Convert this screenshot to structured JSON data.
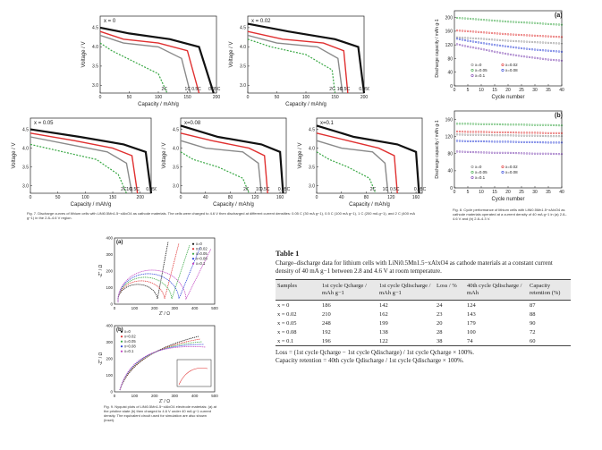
{
  "fig7": {
    "caption": "Fig. 7. Discharge curves of lithium cells with LiNi0.5Mn1.5−xAlxO4 as cathode materials. The cells were charged to 4.6 V then discharged at different current densities: 0.05 C (30 mA g−1), 0.5 C (100 mA g−1), 1 C (200 mA g−1), and 2 C (400 mA g−1) in the 2.8–4.6 V region.",
    "panels": [
      {
        "label": "x = 0",
        "ylabel": "Voltage / V",
        "xlabel": "Capacity / mAh/g",
        "yticks": [
          "3.0",
          "3.5",
          "4.0",
          "4.5"
        ],
        "xticks": [
          "0",
          "50",
          "100",
          "150",
          "200"
        ],
        "rates": [
          "2C",
          "1C",
          "0.5C",
          "0.05C"
        ]
      },
      {
        "label": "x = 0.02",
        "ylabel": "Voltage / V",
        "xlabel": "Capacity / mAh/g",
        "yticks": [
          "3.0",
          "3.5",
          "4.0",
          "4.5"
        ],
        "xticks": [
          "0",
          "50",
          "100",
          "150",
          "200"
        ],
        "rates": [
          "2C",
          "1C",
          "0.5C",
          "0.05C"
        ]
      },
      {
        "label": "x = 0.05",
        "ylabel": "Voltage / V",
        "xlabel": "Capacity / mAh/g",
        "yticks": [
          "3.0",
          "3.5",
          "4.0",
          "4.5"
        ],
        "xticks": [
          "0",
          "50",
          "100",
          "150",
          "200"
        ],
        "rates": [
          "2C",
          "1C",
          "0.5C",
          "0.05C"
        ]
      },
      {
        "label": "x=0.08",
        "ylabel": "Voltage / V",
        "xlabel": "Capacity / mAh/g",
        "yticks": [
          "3.0",
          "3.5",
          "4.0",
          "4.5"
        ],
        "xticks": [
          "0",
          "40",
          "80",
          "120",
          "160"
        ],
        "rates": [
          "2C",
          "1C",
          "0.5C",
          "0.05C"
        ]
      },
      {
        "label": "x=0.1",
        "ylabel": "Voltage / V",
        "xlabel": "Capacity / mAh/g",
        "yticks": [
          "3.0",
          "3.5",
          "4.0",
          "4.5"
        ],
        "xticks": [
          "0",
          "40",
          "80",
          "120",
          "160"
        ],
        "rates": [
          "2C",
          "1C",
          "0.5C",
          "0.05C"
        ]
      }
    ]
  },
  "fig8": {
    "caption": "Fig. 8. Cycle performance of lithium cells with LiNi0.5Mn1.5−xAlxO4 as cathode materials operated at a current density of 40 mA g−1 in (a) 2.8–4.6 V and (b) 2.8–4.3 V.",
    "panels": [
      {
        "label": "(a)",
        "ylabel": "Discharge capacity / mAh g-1",
        "xlabel": "Cycle number",
        "yticks": [
          "0",
          "40",
          "80",
          "120",
          "160",
          "200"
        ],
        "xticks": [
          "0",
          "5",
          "10",
          "15",
          "20",
          "25",
          "30",
          "35",
          "40"
        ],
        "legend": [
          "x=0",
          "x=0.02",
          "x=0.05",
          "x=0.08",
          "x=0.1"
        ]
      },
      {
        "label": "(b)",
        "ylabel": "Discharge capacity / mAh g-1",
        "xlabel": "Cycle number",
        "yticks": [
          "0",
          "40",
          "80",
          "120",
          "160"
        ],
        "xticks": [
          "0",
          "5",
          "10",
          "15",
          "20",
          "25",
          "30",
          "35",
          "40"
        ],
        "legend": [
          "x=0",
          "x=0.02",
          "x=0.05",
          "x=0.08",
          "x=0.1"
        ]
      }
    ]
  },
  "fig9": {
    "caption": "Fig. 9. Nyquist plots of LiNi0.5Mn1.5−xAlxO4 electrode materials: (a) at the pristine state (b) then charged to 4.6 V under 40 mA g−1 current density. The equivalent circuit used for simulation are also shown (inset).",
    "panels": [
      {
        "label": "(a)",
        "ylabel": "-Z'' / Ω",
        "xlabel": "Z' / Ω",
        "yticks": [
          "0",
          "100",
          "200",
          "300",
          "400"
        ],
        "xticks": [
          "0",
          "100",
          "200",
          "300",
          "400",
          "500"
        ],
        "legend": [
          "x=0",
          "x=0.02",
          "x=0.05",
          "x=0.08",
          "x=0.1"
        ]
      },
      {
        "label": "(b)",
        "ylabel": "-Z'' / Ω",
        "xlabel": "Z' / Ω",
        "yticks": [
          "0",
          "100",
          "200",
          "300",
          "400"
        ],
        "xticks": [
          "0",
          "100",
          "200",
          "300",
          "400",
          "500"
        ],
        "legend": [
          "x=0",
          "x=0.02",
          "x=0.05",
          "x=0.08",
          "x=0.1"
        ]
      }
    ]
  },
  "table1": {
    "title": "Table 1",
    "caption": "Charge–discharge data for lithium cells with LiNi0.5Mn1.5−xAlxO4 as cathode materials at a constant current density of 40 mA g−1 between 2.8 and 4.6 V at room temperature.",
    "headers": [
      "Samples",
      "1st cycle Qcharge / mAh g−1",
      "1st cycle Qdischarge / mAh g−1",
      "Loss / %",
      "40th cycle Qdischarge / mAh",
      "Capacity retention (%)"
    ],
    "rows": [
      [
        "x = 0",
        "186",
        "142",
        "24",
        "124",
        "87"
      ],
      [
        "x = 0.02",
        "210",
        "162",
        "23",
        "143",
        "88"
      ],
      [
        "x = 0.05",
        "248",
        "199",
        "20",
        "179",
        "90"
      ],
      [
        "x = 0.08",
        "192",
        "138",
        "28",
        "100",
        "72"
      ],
      [
        "x = 0.1",
        "196",
        "122",
        "38",
        "74",
        "60"
      ]
    ],
    "notes": [
      "Loss = (1st cycle Qcharge − 1st cycle Qdischarge) / 1st cycle Qcharge × 100%.",
      "Capacity retention = 40th cycle Qdischarge / 1st cycle Qdischarge × 100%."
    ]
  },
  "colors": {
    "black": "#111111",
    "red": "#e03030",
    "green": "#3aa845",
    "gray": "#8a8a8a",
    "blue": "#2a3fd8",
    "purple": "#7a3fb0",
    "magenta": "#c040c0"
  },
  "chart_data": [
    {
      "type": "line",
      "title": "x = 0",
      "xlabel": "Capacity / mAh/g",
      "ylabel": "Voltage / V",
      "xlim": [
        0,
        200
      ],
      "ylim": [
        2.8,
        4.8
      ],
      "series": [
        {
          "name": "2C",
          "x": [
            0,
            20,
            60,
            100,
            115
          ],
          "y": [
            4.1,
            3.9,
            3.6,
            3.3,
            2.8
          ]
        },
        {
          "name": "1C",
          "x": [
            0,
            40,
            100,
            140,
            155
          ],
          "y": [
            4.3,
            4.1,
            4.0,
            3.7,
            2.8
          ]
        },
        {
          "name": "0.5C",
          "x": [
            0,
            40,
            100,
            150,
            170
          ],
          "y": [
            4.4,
            4.2,
            4.1,
            3.9,
            2.8
          ]
        },
        {
          "name": "0.05C",
          "x": [
            0,
            50,
            120,
            170,
            195
          ],
          "y": [
            4.5,
            4.35,
            4.2,
            4.0,
            2.8
          ]
        }
      ]
    },
    {
      "type": "line",
      "title": "x = 0.02",
      "xlabel": "Capacity / mAh/g",
      "ylabel": "Voltage / V",
      "xlim": [
        0,
        200
      ],
      "ylim": [
        2.8,
        4.8
      ],
      "series": [
        {
          "name": "2C",
          "x": [
            0,
            40,
            100,
            145,
            150
          ],
          "y": [
            4.2,
            4.0,
            3.8,
            3.4,
            2.8
          ]
        },
        {
          "name": "1C",
          "x": [
            0,
            50,
            120,
            155,
            163
          ],
          "y": [
            4.3,
            4.1,
            4.0,
            3.7,
            2.8
          ]
        },
        {
          "name": "0.5C",
          "x": [
            0,
            60,
            130,
            165,
            172
          ],
          "y": [
            4.4,
            4.2,
            4.1,
            3.9,
            2.8
          ]
        },
        {
          "name": "0.05C",
          "x": [
            0,
            70,
            150,
            190,
            200
          ],
          "y": [
            4.6,
            4.4,
            4.2,
            4.0,
            2.8
          ]
        }
      ]
    },
    {
      "type": "line",
      "title": "x = 0.05",
      "xlabel": "Capacity / mAh/g",
      "ylabel": "Voltage / V",
      "xlim": [
        0,
        220
      ],
      "ylim": [
        2.8,
        4.8
      ],
      "series": [
        {
          "name": "2C",
          "x": [
            0,
            60,
            120,
            160,
            175
          ],
          "y": [
            4.1,
            3.9,
            3.7,
            3.3,
            2.8
          ]
        },
        {
          "name": "1C",
          "x": [
            0,
            70,
            140,
            175,
            185
          ],
          "y": [
            4.3,
            4.1,
            3.9,
            3.6,
            2.8
          ]
        },
        {
          "name": "0.5C",
          "x": [
            0,
            80,
            150,
            185,
            195
          ],
          "y": [
            4.4,
            4.2,
            4.0,
            3.8,
            2.8
          ]
        },
        {
          "name": "0.05C",
          "x": [
            0,
            90,
            170,
            210,
            220
          ],
          "y": [
            4.5,
            4.3,
            4.1,
            3.9,
            2.8
          ]
        }
      ]
    },
    {
      "type": "line",
      "title": "x=0.08",
      "xlabel": "Capacity / mAh/g",
      "ylabel": "Voltage / V",
      "xlim": [
        0,
        170
      ],
      "ylim": [
        2.8,
        4.8
      ],
      "series": [
        {
          "name": "2C",
          "x": [
            0,
            20,
            60,
            100,
            110
          ],
          "y": [
            3.9,
            3.7,
            3.5,
            3.2,
            2.8
          ]
        },
        {
          "name": "1C",
          "x": [
            0,
            40,
            100,
            125,
            130
          ],
          "y": [
            4.2,
            4.0,
            3.9,
            3.6,
            2.8
          ]
        },
        {
          "name": "0.5C",
          "x": [
            0,
            50,
            110,
            135,
            140
          ],
          "y": [
            4.4,
            4.2,
            4.0,
            3.8,
            2.8
          ]
        },
        {
          "name": "0.05C",
          "x": [
            0,
            60,
            130,
            160,
            165
          ],
          "y": [
            4.6,
            4.3,
            4.1,
            3.9,
            2.8
          ]
        }
      ]
    },
    {
      "type": "line",
      "title": "x=0.1",
      "xlabel": "Capacity / mAh/g",
      "ylabel": "Voltage / V",
      "xlim": [
        0,
        170
      ],
      "ylim": [
        2.8,
        4.8
      ],
      "series": [
        {
          "name": "2C",
          "x": [
            0,
            20,
            50,
            85,
            95
          ],
          "y": [
            3.9,
            3.7,
            3.5,
            3.2,
            2.8
          ]
        },
        {
          "name": "1C",
          "x": [
            0,
            40,
            90,
            110,
            115
          ],
          "y": [
            4.2,
            4.0,
            3.9,
            3.6,
            2.8
          ]
        },
        {
          "name": "0.5C",
          "x": [
            0,
            50,
            100,
            125,
            130
          ],
          "y": [
            4.4,
            4.2,
            4.0,
            3.8,
            2.8
          ]
        },
        {
          "name": "0.05C",
          "x": [
            0,
            60,
            130,
            160,
            165
          ],
          "y": [
            4.6,
            4.3,
            4.1,
            3.9,
            2.8
          ]
        }
      ]
    },
    {
      "type": "scatter",
      "title": "(a)",
      "xlabel": "Cycle number",
      "ylabel": "Discharge capacity / mAh g-1",
      "xlim": [
        0,
        40
      ],
      "ylim": [
        0,
        220
      ],
      "x": [
        1,
        5,
        10,
        15,
        20,
        25,
        30,
        35,
        40
      ],
      "series": [
        {
          "name": "x=0",
          "values": [
            142,
            140,
            138,
            135,
            132,
            130,
            128,
            126,
            124
          ]
        },
        {
          "name": "x=0.02",
          "values": [
            162,
            160,
            157,
            154,
            151,
            149,
            147,
            145,
            143
          ]
        },
        {
          "name": "x=0.05",
          "values": [
            199,
            197,
            194,
            191,
            188,
            186,
            184,
            181,
            179
          ]
        },
        {
          "name": "x=0.08",
          "values": [
            138,
            132,
            126,
            120,
            115,
            110,
            106,
            103,
            100
          ]
        },
        {
          "name": "x=0.1",
          "values": [
            122,
            115,
            108,
            100,
            93,
            87,
            82,
            77,
            74
          ]
        }
      ]
    },
    {
      "type": "scatter",
      "title": "(b)",
      "xlabel": "Cycle number",
      "ylabel": "Discharge capacity / mAh g-1",
      "xlim": [
        0,
        40
      ],
      "ylim": [
        0,
        180
      ],
      "x": [
        1,
        5,
        10,
        15,
        20,
        25,
        30,
        35,
        40
      ],
      "series": [
        {
          "name": "x=0",
          "values": [
            125,
            124,
            124,
            123,
            123,
            122,
            122,
            121,
            121
          ]
        },
        {
          "name": "x=0.02",
          "values": [
            132,
            131,
            131,
            130,
            130,
            129,
            129,
            128,
            128
          ]
        },
        {
          "name": "x=0.05",
          "values": [
            150,
            150,
            149,
            149,
            148,
            148,
            147,
            147,
            146
          ]
        },
        {
          "name": "x=0.08",
          "values": [
            110,
            109,
            109,
            108,
            108,
            107,
            107,
            106,
            106
          ]
        },
        {
          "name": "x=0.1",
          "values": [
            85,
            84,
            83,
            82,
            82,
            81,
            80,
            80,
            79
          ]
        }
      ]
    }
  ]
}
